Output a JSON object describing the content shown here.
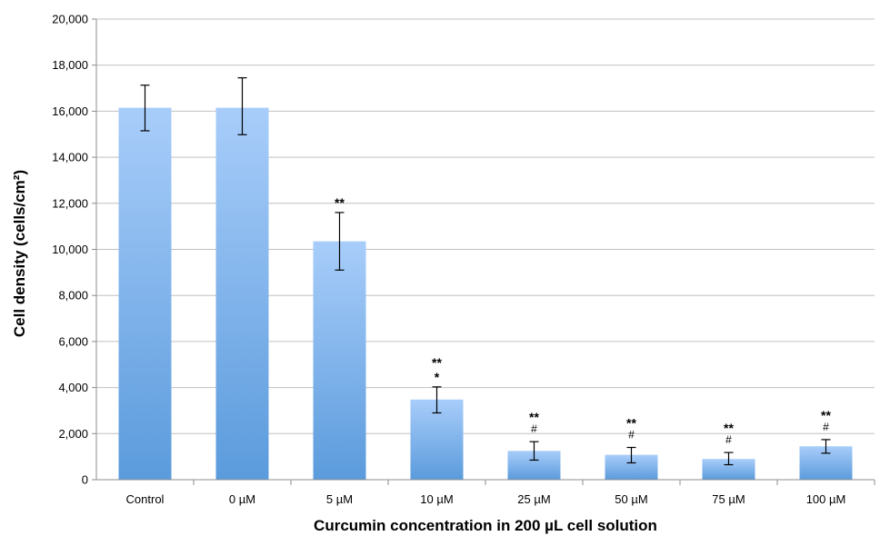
{
  "chart_data": {
    "type": "bar",
    "title": "",
    "xlabel": "Curcumin concentration in 200 µL cell solution",
    "ylabel": "Cell density (cells/cm²)",
    "ylim": [
      0,
      20000
    ],
    "yticks": [
      0,
      2000,
      4000,
      6000,
      8000,
      10000,
      12000,
      14000,
      16000,
      18000,
      20000
    ],
    "ytick_labels": [
      "0",
      "2,000",
      "4,000",
      "6,000",
      "8,000",
      "10,000",
      "12,000",
      "14,000",
      "16,000",
      "18,000",
      "20,000"
    ],
    "grid": true,
    "categories": [
      "Control",
      "0 µM",
      "5 µM",
      "10 µM",
      "25 µM",
      "50 µM",
      "75 µM",
      "100 µM"
    ],
    "values": [
      16150,
      16150,
      10350,
      3480,
      1250,
      1080,
      900,
      1450
    ],
    "error_low": [
      15150,
      14980,
      9100,
      2900,
      850,
      730,
      650,
      1150
    ],
    "error_high": [
      17130,
      17450,
      11600,
      4030,
      1650,
      1400,
      1180,
      1740
    ],
    "annotations": [
      [],
      [],
      [
        "**"
      ],
      [
        "**",
        "*"
      ],
      [
        "**",
        "#"
      ],
      [
        "**",
        "#"
      ],
      [
        "**",
        "#"
      ],
      [
        "**",
        "#"
      ]
    ],
    "colors": {
      "bar_top": "#a8cdfa",
      "bar_bottom": "#5b9bdc",
      "grid": "#c0c0c0",
      "axis": "#8c8c8c"
    }
  }
}
